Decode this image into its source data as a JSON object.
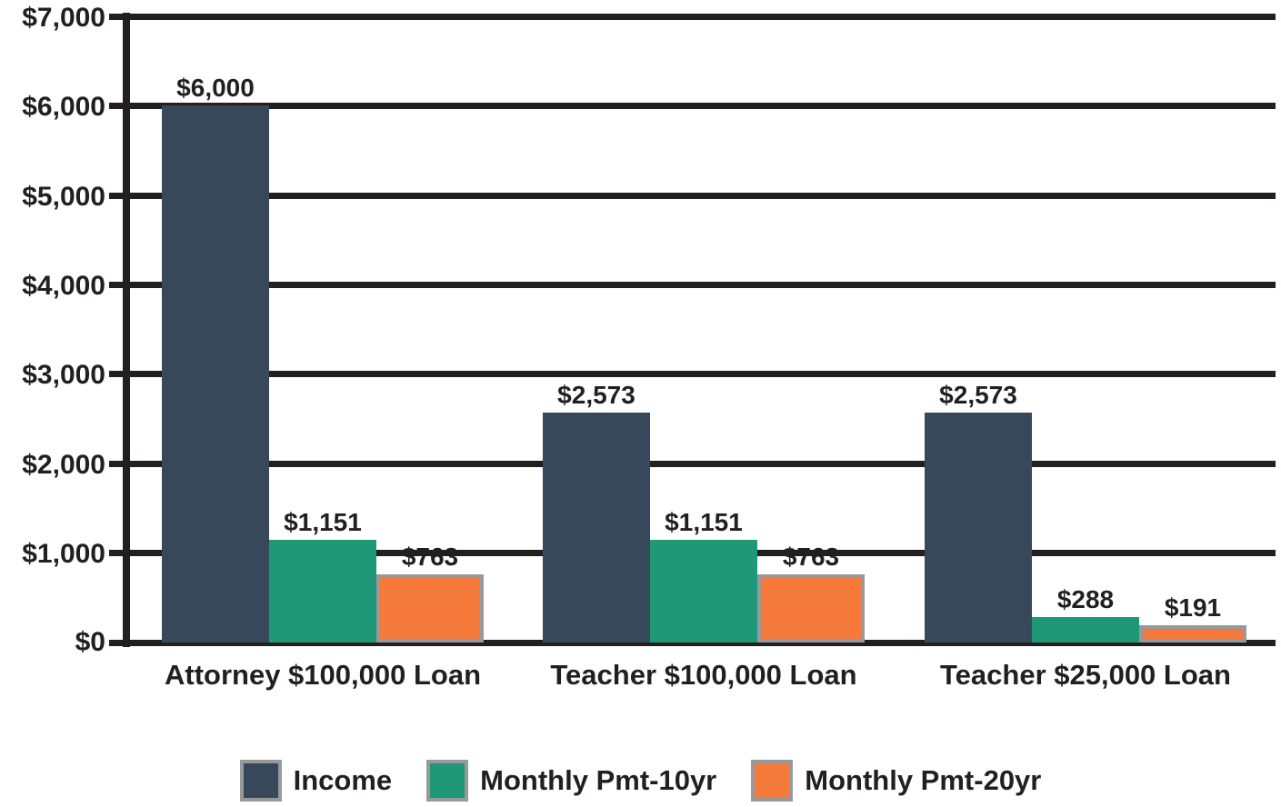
{
  "chart_data": {
    "type": "bar",
    "title": "",
    "xlabel": "",
    "ylabel": "",
    "categories": [
      "Attorney $100,000 Loan",
      "Teacher $100,000 Loan",
      "Teacher $25,000 Loan"
    ],
    "series": [
      {
        "name": "Income",
        "color": "#37485b",
        "values": [
          6000,
          2573,
          2573
        ],
        "labels": [
          "$6,000",
          "$2,573",
          "$2,573"
        ]
      },
      {
        "name": "Monthly Pmt-10yr",
        "color": "#1f9877",
        "values": [
          1151,
          1151,
          288
        ],
        "labels": [
          "$1,151",
          "$1,151",
          "$288"
        ]
      },
      {
        "name": "Monthly Pmt-20yr",
        "color": "#f5793b",
        "values": [
          763,
          763,
          191
        ],
        "labels": [
          "$763",
          "$763",
          "$191"
        ]
      }
    ],
    "ylim": [
      0,
      7000
    ],
    "ytick_step": 1000,
    "yticks": [
      "$7,000",
      "$6,000",
      "$5,000",
      "$4,000",
      "$3,000",
      "$2,000",
      "$1,000",
      "$0"
    ],
    "grid": "horizontal",
    "legend_position": "bottom",
    "colors": {
      "text": "#231f20",
      "axis": "#231f20",
      "bar_border": "#97999b",
      "background": "#ffffff"
    }
  }
}
